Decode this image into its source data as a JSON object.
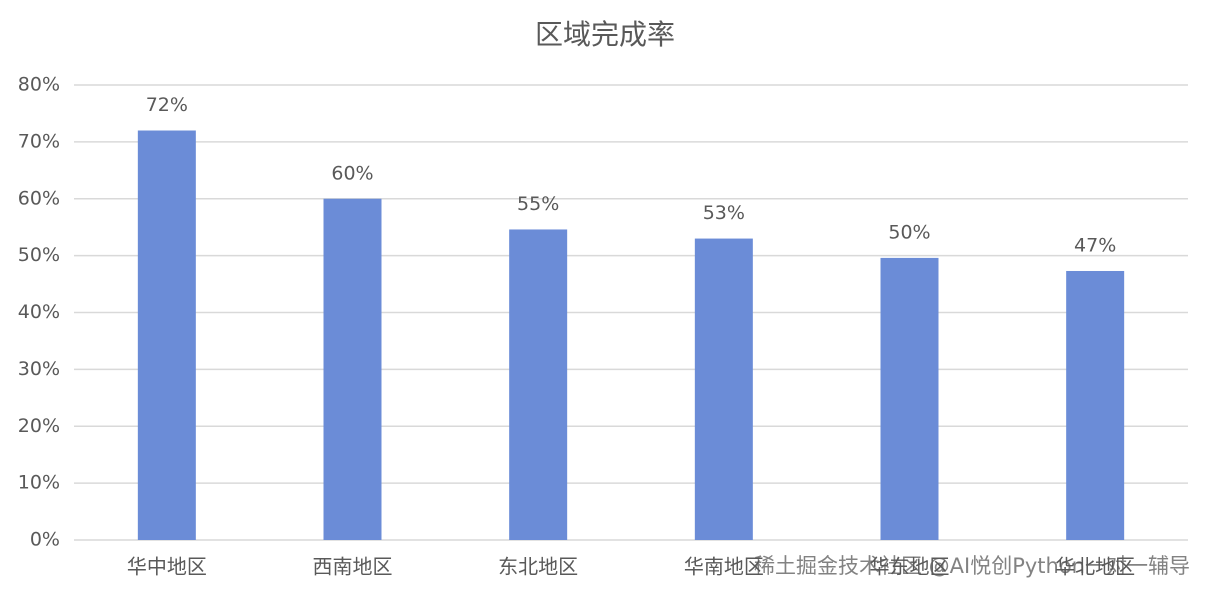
{
  "chart_data": {
    "type": "bar",
    "title": "区域完成率",
    "categories": [
      "华中地区",
      "西南地区",
      "东北地区",
      "华南地区",
      "华东地区",
      "华北地区"
    ],
    "values": [
      72,
      60,
      54.6,
      53,
      49.6,
      47.3
    ],
    "value_labels": [
      "72%",
      "60%",
      "55%",
      "53%",
      "50%",
      "47%"
    ],
    "color": "#6b8cd7",
    "ylim": [
      0,
      80
    ],
    "yticks": [
      {
        "value": 0,
        "label": "0%"
      },
      {
        "value": 10,
        "label": "10%"
      },
      {
        "value": 20,
        "label": "20%"
      },
      {
        "value": 30,
        "label": "30%"
      },
      {
        "value": 40,
        "label": "40%"
      },
      {
        "value": 50,
        "label": "50%"
      },
      {
        "value": 60,
        "label": "60%"
      },
      {
        "value": 70,
        "label": "70%"
      },
      {
        "value": 80,
        "label": "80%"
      }
    ],
    "grid": true,
    "watermark": "稀土掘金技术社区 @AI悦创Python一对一辅导"
  }
}
